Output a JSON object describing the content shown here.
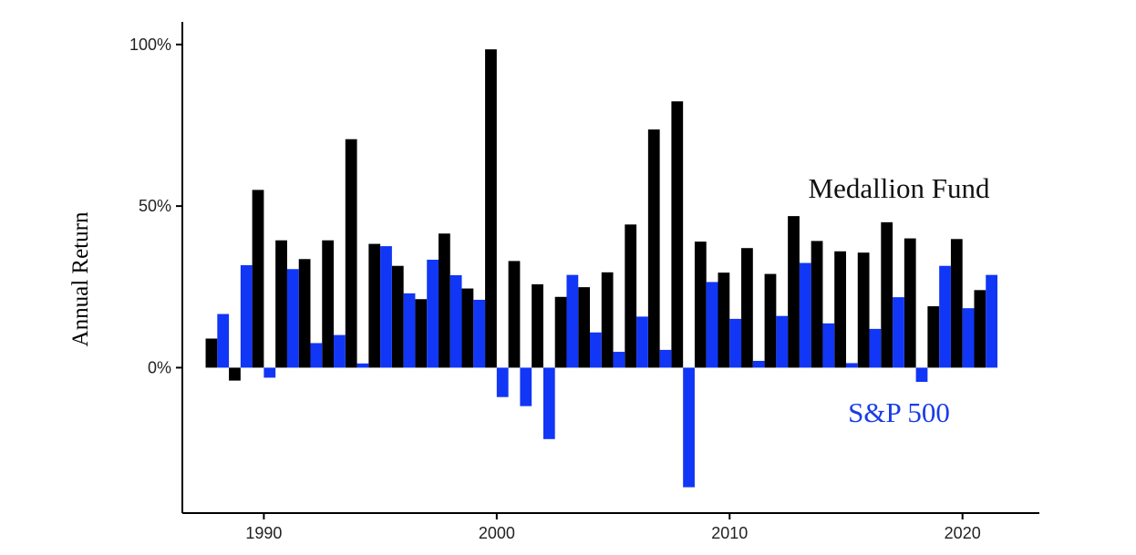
{
  "chart_data": {
    "type": "bar",
    "ylabel": "Annual Return",
    "xlabel": "",
    "ylim": [
      -45,
      107
    ],
    "yticks": [
      0,
      50,
      100
    ],
    "ytick_labels": [
      "0%",
      "50%",
      "100%"
    ],
    "xlim": [
      1986.5,
      2023.3
    ],
    "xticks": [
      1990,
      2000,
      2010,
      2020
    ],
    "xtick_labels": [
      "1990",
      "2000",
      "2010",
      "2020"
    ],
    "grid": false,
    "legend": "none",
    "series": [
      {
        "name": "Medallion Fund",
        "color": "#000000",
        "label_color": "#111111",
        "x": [
          1988,
          1989,
          1990,
          1991,
          1992,
          1993,
          1994,
          1995,
          1996,
          1997,
          1998,
          1999,
          2000,
          2001,
          2002,
          2003,
          2004,
          2005,
          2006,
          2007,
          2008,
          2009,
          2010,
          2011,
          2012,
          2013,
          2014,
          2015,
          2016,
          2017,
          2018,
          2019,
          2020,
          2021
        ],
        "values": [
          9.0,
          -4.0,
          55.0,
          39.4,
          33.6,
          39.4,
          70.7,
          38.3,
          31.5,
          21.2,
          41.5,
          24.5,
          98.5,
          33.0,
          25.8,
          21.9,
          24.9,
          29.5,
          44.3,
          73.7,
          82.4,
          39.0,
          29.4,
          37.0,
          29.0,
          46.9,
          39.2,
          36.0,
          35.6,
          45.0,
          40.0,
          19.0,
          39.8,
          24.0
        ]
      },
      {
        "name": "S&P 500",
        "color": "#1136F5",
        "label_color": "#1A3CE8",
        "x": [
          1988,
          1989,
          1990,
          1991,
          1992,
          1993,
          1994,
          1995,
          1996,
          1997,
          1998,
          1999,
          2000,
          2001,
          2002,
          2003,
          2004,
          2005,
          2006,
          2007,
          2008,
          2009,
          2010,
          2011,
          2012,
          2013,
          2014,
          2015,
          2016,
          2017,
          2018,
          2019,
          2020,
          2021
        ],
        "values": [
          16.6,
          31.7,
          -3.1,
          30.5,
          7.6,
          10.1,
          1.3,
          37.6,
          23.0,
          33.4,
          28.6,
          21.0,
          -9.1,
          -11.9,
          -22.1,
          28.7,
          10.9,
          4.9,
          15.8,
          5.5,
          -37.0,
          26.5,
          15.1,
          2.1,
          16.0,
          32.4,
          13.7,
          1.4,
          12.0,
          21.8,
          -4.4,
          31.5,
          18.4,
          28.7
        ]
      }
    ]
  }
}
